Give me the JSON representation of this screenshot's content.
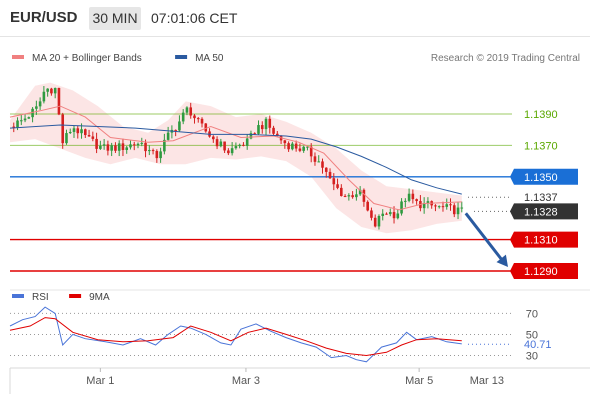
{
  "header": {
    "pair": "EUR/USD",
    "timeframe": "30 MIN",
    "time": "07:01:06 CET"
  },
  "chart_data": {
    "type": "candlestick",
    "legend": [
      {
        "label": "MA 20 + Bollinger Bands",
        "color": "#f08080"
      },
      {
        "label": "MA 50",
        "color": "#2a5aa0"
      }
    ],
    "credit": "Research © 2019 Trading Central",
    "ylim": [
      1.1283,
      1.1418
    ],
    "levels": [
      {
        "value": 1.139,
        "label": "1.1390",
        "color": "#5aa800",
        "style": "line"
      },
      {
        "value": 1.137,
        "label": "1.1370",
        "color": "#5aa800",
        "style": "line"
      },
      {
        "value": 1.135,
        "label": "1.1350",
        "color": "#1a6fd6",
        "style": "line-filled"
      },
      {
        "value": 1.1337,
        "label": "1.1337",
        "color": "#444444",
        "style": "dotted"
      },
      {
        "value": 1.1328,
        "label": "1.1328",
        "color": "#333333",
        "style": "current"
      },
      {
        "value": 1.131,
        "label": "1.1310",
        "color": "#e00000",
        "style": "line-filled"
      },
      {
        "value": 1.129,
        "label": "1.1290",
        "color": "#e00000",
        "style": "line-filled"
      }
    ],
    "candle_colors": {
      "up": "#2f9a40",
      "down": "#d52020",
      "arrow": "#2a5aa0"
    },
    "forecast_target": 1.129,
    "price_points": [
      [
        0,
        1.1382
      ],
      [
        5,
        1.1386
      ],
      [
        11,
        1.1394
      ],
      [
        14,
        1.1406
      ],
      [
        18,
        1.1406
      ],
      [
        21,
        1.1372
      ],
      [
        25,
        1.1382
      ],
      [
        31,
        1.1374
      ],
      [
        37,
        1.1368
      ],
      [
        45,
        1.1369
      ],
      [
        52,
        1.1372
      ],
      [
        58,
        1.1362
      ],
      [
        63,
        1.1376
      ],
      [
        67,
        1.1384
      ],
      [
        71,
        1.1394
      ],
      [
        75,
        1.1384
      ],
      [
        81,
        1.1374
      ],
      [
        87,
        1.1366
      ],
      [
        91,
        1.137
      ],
      [
        95,
        1.1372
      ],
      [
        98,
        1.1381
      ],
      [
        102,
        1.1384
      ],
      [
        106,
        1.1376
      ],
      [
        110,
        1.1371
      ],
      [
        114,
        1.1369
      ],
      [
        119,
        1.1366
      ],
      [
        124,
        1.1358
      ],
      [
        128,
        1.1346
      ],
      [
        134,
        1.1337
      ],
      [
        139,
        1.1341
      ],
      [
        145,
        1.1318
      ],
      [
        149,
        1.1328
      ],
      [
        154,
        1.1326
      ],
      [
        158,
        1.1338
      ],
      [
        162,
        1.1333
      ],
      [
        166,
        1.1332
      ],
      [
        169,
        1.1331
      ],
      [
        173,
        1.133
      ],
      [
        177,
        1.1329
      ],
      [
        180,
        1.1328
      ]
    ],
    "ma20_points": [
      [
        0,
        1.1388
      ],
      [
        12,
        1.1392
      ],
      [
        20,
        1.1395
      ],
      [
        30,
        1.1388
      ],
      [
        40,
        1.1375
      ],
      [
        55,
        1.1372
      ],
      [
        65,
        1.1373
      ],
      [
        80,
        1.1382
      ],
      [
        92,
        1.1375
      ],
      [
        105,
        1.1376
      ],
      [
        115,
        1.1372
      ],
      [
        125,
        1.1365
      ],
      [
        135,
        1.1348
      ],
      [
        145,
        1.1333
      ],
      [
        155,
        1.1329
      ],
      [
        165,
        1.1333
      ],
      [
        180,
        1.1334
      ]
    ],
    "bollinger_upper": [
      [
        0,
        1.1386
      ],
      [
        10,
        1.1408
      ],
      [
        16,
        1.141
      ],
      [
        25,
        1.1405
      ],
      [
        35,
        1.1395
      ],
      [
        45,
        1.1382
      ],
      [
        55,
        1.1378
      ],
      [
        63,
        1.1386
      ],
      [
        70,
        1.1398
      ],
      [
        80,
        1.1395
      ],
      [
        90,
        1.1388
      ],
      [
        100,
        1.139
      ],
      [
        110,
        1.1385
      ],
      [
        120,
        1.1378
      ],
      [
        130,
        1.1368
      ],
      [
        140,
        1.1354
      ],
      [
        150,
        1.1344
      ],
      [
        160,
        1.1342
      ],
      [
        170,
        1.134
      ],
      [
        180,
        1.1338
      ]
    ],
    "bollinger_lower": [
      [
        0,
        1.1372
      ],
      [
        10,
        1.1374
      ],
      [
        20,
        1.1368
      ],
      [
        30,
        1.1362
      ],
      [
        40,
        1.1358
      ],
      [
        50,
        1.1362
      ],
      [
        60,
        1.1358
      ],
      [
        70,
        1.1358
      ],
      [
        80,
        1.1362
      ],
      [
        90,
        1.1361
      ],
      [
        100,
        1.1363
      ],
      [
        110,
        1.136
      ],
      [
        120,
        1.135
      ],
      [
        130,
        1.133
      ],
      [
        140,
        1.1318
      ],
      [
        150,
        1.1314
      ],
      [
        160,
        1.1316
      ],
      [
        170,
        1.132
      ],
      [
        180,
        1.1322
      ]
    ],
    "ma50_points": [
      [
        0,
        1.1381
      ],
      [
        20,
        1.1383
      ],
      [
        35,
        1.1382
      ],
      [
        50,
        1.1381
      ],
      [
        65,
        1.1379
      ],
      [
        80,
        1.1377
      ],
      [
        95,
        1.1377
      ],
      [
        110,
        1.1376
      ],
      [
        120,
        1.1374
      ],
      [
        130,
        1.1369
      ],
      [
        140,
        1.1363
      ],
      [
        150,
        1.1356
      ],
      [
        160,
        1.1348
      ],
      [
        170,
        1.1343
      ],
      [
        180,
        1.1339
      ]
    ],
    "x_ticks": [
      {
        "label": "Mar 1",
        "pos": 36
      },
      {
        "label": "Mar 3",
        "pos": 94
      },
      {
        "label": "Mar 5",
        "pos": 163
      },
      {
        "label": "Mar 13",
        "pos": 190
      }
    ],
    "x_range": [
      0,
      200
    ],
    "rsi": {
      "legend": [
        {
          "label": "RSI",
          "color": "#4a74d8"
        },
        {
          "label": "9MA",
          "color": "#e00000"
        }
      ],
      "ylim": [
        20,
        78
      ],
      "levels": [
        70,
        50,
        30
      ],
      "current": "40.71",
      "rsi_points": [
        [
          0,
          58
        ],
        [
          5,
          64
        ],
        [
          10,
          67
        ],
        [
          14,
          76
        ],
        [
          18,
          70
        ],
        [
          21,
          40
        ],
        [
          25,
          50
        ],
        [
          30,
          46
        ],
        [
          38,
          43
        ],
        [
          45,
          40
        ],
        [
          52,
          46
        ],
        [
          58,
          40
        ],
        [
          63,
          50
        ],
        [
          68,
          58
        ],
        [
          72,
          56
        ],
        [
          78,
          50
        ],
        [
          84,
          42
        ],
        [
          88,
          40
        ],
        [
          92,
          55
        ],
        [
          98,
          60
        ],
        [
          104,
          53
        ],
        [
          110,
          47
        ],
        [
          116,
          42
        ],
        [
          122,
          38
        ],
        [
          128,
          28
        ],
        [
          134,
          30
        ],
        [
          138,
          26
        ],
        [
          142,
          24
        ],
        [
          148,
          38
        ],
        [
          154,
          42
        ],
        [
          158,
          52
        ],
        [
          162,
          45
        ],
        [
          168,
          48
        ],
        [
          174,
          43
        ],
        [
          180,
          41
        ]
      ],
      "ma9_points": [
        [
          0,
          54
        ],
        [
          8,
          58
        ],
        [
          14,
          66
        ],
        [
          18,
          65
        ],
        [
          25,
          52
        ],
        [
          35,
          45
        ],
        [
          45,
          43
        ],
        [
          55,
          44
        ],
        [
          65,
          47
        ],
        [
          72,
          58
        ],
        [
          80,
          52
        ],
        [
          88,
          44
        ],
        [
          95,
          52
        ],
        [
          102,
          56
        ],
        [
          110,
          50
        ],
        [
          118,
          44
        ],
        [
          126,
          37
        ],
        [
          134,
          32
        ],
        [
          142,
          30
        ],
        [
          150,
          33
        ],
        [
          156,
          40
        ],
        [
          162,
          45
        ],
        [
          170,
          46
        ],
        [
          180,
          44
        ]
      ]
    }
  }
}
